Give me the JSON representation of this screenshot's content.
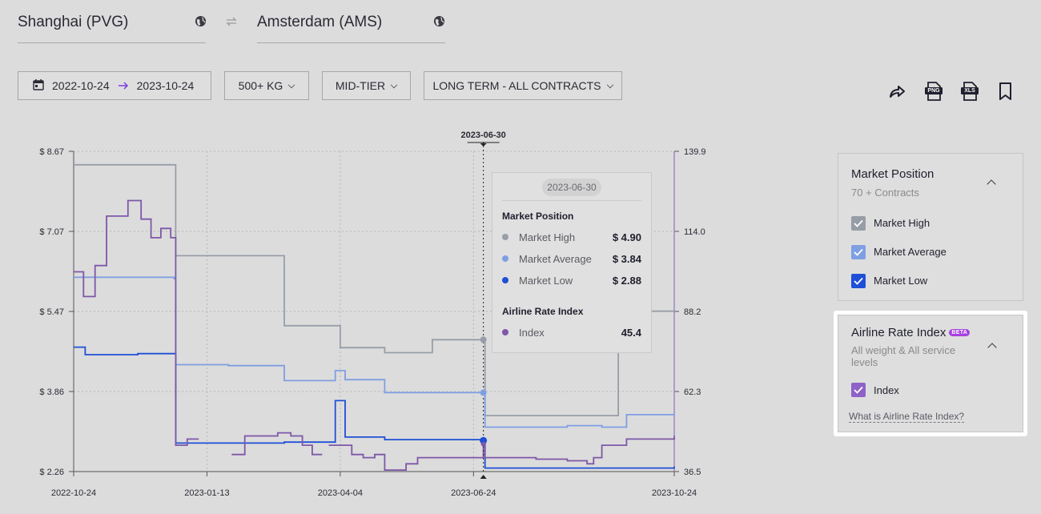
{
  "route": {
    "origin": "Shanghai (PVG)",
    "destination": "Amsterdam (AMS)",
    "origin_icon": "globe-icon",
    "destination_icon": "globe-icon",
    "swap_icon": "swap-arrows-icon"
  },
  "filters": {
    "date_from": "2022-10-24",
    "date_to": "2023-10-24",
    "weight": "500+ KG",
    "tier": "MID-TIER",
    "contract": "LONG TERM - ALL CONTRACTS"
  },
  "toolbar": {
    "share_icon": "share-icon",
    "png_label": "PNG",
    "xls_label": "XLS",
    "bookmark_icon": "bookmark-icon"
  },
  "chart_data": {
    "type": "line",
    "step": true,
    "title": "",
    "hover_date": "2023-06-30",
    "x_ticks": [
      "2022-10-24",
      "2023-01-13",
      "2023-04-04",
      "2023-06-24",
      "2023-10-24"
    ],
    "y_left_ticks": [
      "$ 2.26",
      "$ 3.86",
      "$ 5.47",
      "$ 7.07",
      "$ 8.67"
    ],
    "y_right_ticks": [
      "36.5",
      "62.3",
      "88.2",
      "114.0",
      "139.9"
    ],
    "y_left_range": [
      2.26,
      8.67
    ],
    "y_right_range": [
      36.5,
      139.9
    ],
    "grid": true,
    "colors": {
      "high": "#989ea8",
      "avg": "#7f9fe3",
      "low": "#1e4fd6",
      "index": "#7e57a8"
    },
    "series": [
      {
        "name": "Market High",
        "axis": "left",
        "color": "#989ea8",
        "points": [
          [
            "2022-10-24",
            8.4
          ],
          [
            "2022-12-24",
            8.4
          ],
          [
            "2022-12-25",
            6.58
          ],
          [
            "2023-02-28",
            6.58
          ],
          [
            "2023-03-01",
            5.18
          ],
          [
            "2023-04-04",
            4.74
          ],
          [
            "2023-05-01",
            4.64
          ],
          [
            "2023-05-30",
            4.9
          ],
          [
            "2023-06-30",
            4.9
          ],
          [
            "2023-07-01",
            3.38
          ],
          [
            "2023-09-19",
            3.38
          ],
          [
            "2023-09-20",
            5.47
          ],
          [
            "2023-10-24",
            5.47
          ]
        ]
      },
      {
        "name": "Market Average",
        "axis": "left",
        "color": "#7f9fe3",
        "points": [
          [
            "2022-10-24",
            6.15
          ],
          [
            "2022-12-24",
            6.12
          ],
          [
            "2022-12-25",
            4.4
          ],
          [
            "2023-01-26",
            4.38
          ],
          [
            "2023-03-01",
            4.08
          ],
          [
            "2023-04-01",
            4.28
          ],
          [
            "2023-04-07",
            4.1
          ],
          [
            "2023-05-01",
            3.84
          ],
          [
            "2023-06-30",
            3.84
          ],
          [
            "2023-07-01",
            3.15
          ],
          [
            "2023-08-20",
            3.18
          ],
          [
            "2023-09-10",
            3.15
          ],
          [
            "2023-09-25",
            3.4
          ],
          [
            "2023-10-24",
            3.42
          ]
        ]
      },
      {
        "name": "Market Low",
        "axis": "left",
        "color": "#1e4fd6",
        "points": [
          [
            "2022-10-24",
            4.75
          ],
          [
            "2022-10-31",
            4.6
          ],
          [
            "2022-12-02",
            4.62
          ],
          [
            "2022-12-24",
            4.62
          ],
          [
            "2022-12-25",
            2.83
          ],
          [
            "2023-01-13",
            2.83
          ],
          [
            "2023-03-01",
            2.85
          ],
          [
            "2023-03-31",
            2.85
          ],
          [
            "2023-04-01",
            3.68
          ],
          [
            "2023-04-07",
            2.95
          ],
          [
            "2023-05-01",
            2.9
          ],
          [
            "2023-06-30",
            2.88
          ],
          [
            "2023-07-01",
            2.33
          ],
          [
            "2023-10-24",
            2.36
          ]
        ]
      },
      {
        "name": "Index",
        "axis": "right",
        "color": "#7e57a8",
        "points": [
          [
            "2022-10-24",
            101
          ],
          [
            "2022-10-30",
            93
          ],
          [
            "2022-11-06",
            103
          ],
          [
            "2022-11-13",
            119
          ],
          [
            "2022-11-26",
            124
          ],
          [
            "2022-12-04",
            118
          ],
          [
            "2022-12-10",
            112
          ],
          [
            "2022-12-16",
            115
          ],
          [
            "2022-12-22",
            112
          ],
          [
            "2022-12-25",
            45
          ],
          [
            "2023-01-01",
            47
          ],
          [
            "2023-01-08",
            null
          ],
          [
            "2023-01-28",
            42
          ],
          [
            "2023-02-05",
            48
          ],
          [
            "2023-02-25",
            49
          ],
          [
            "2023-03-05",
            48
          ],
          [
            "2023-03-12",
            45
          ],
          [
            "2023-03-18",
            42
          ],
          [
            "2023-03-24",
            null
          ],
          [
            "2023-03-28",
            45
          ],
          [
            "2023-04-06",
            45
          ],
          [
            "2023-04-11",
            42
          ],
          [
            "2023-04-18",
            41
          ],
          [
            "2023-04-25",
            42
          ],
          [
            "2023-05-01",
            37
          ],
          [
            "2023-05-14",
            39
          ],
          [
            "2023-05-21",
            41
          ],
          [
            "2023-06-03",
            41
          ],
          [
            "2023-06-17",
            41
          ],
          [
            "2023-06-30",
            45.4
          ],
          [
            "2023-07-01",
            41
          ],
          [
            "2023-07-15",
            41
          ],
          [
            "2023-08-01",
            40.5
          ],
          [
            "2023-08-20",
            40
          ],
          [
            "2023-09-01",
            39
          ],
          [
            "2023-09-05",
            41
          ],
          [
            "2023-09-10",
            45
          ],
          [
            "2023-09-25",
            47
          ],
          [
            "2023-10-10",
            47
          ],
          [
            "2023-10-24",
            48
          ]
        ]
      }
    ]
  },
  "tooltip": {
    "date": "2023-06-30",
    "market_title": "Market Position",
    "rows": [
      {
        "label": "Market High",
        "value": "$ 4.90",
        "color": "#989ea8"
      },
      {
        "label": "Market Average",
        "value": "$ 3.84",
        "color": "#7f9fe3"
      },
      {
        "label": "Market Low",
        "value": "$ 2.88",
        "color": "#1e4fd6"
      }
    ],
    "index_title": "Airline Rate Index",
    "index_row": {
      "label": "Index",
      "value": "45.4",
      "color": "#7e57a8"
    }
  },
  "market_panel": {
    "title": "Market Position",
    "subtitle": "70 + Contracts",
    "items": [
      {
        "label": "Market High",
        "color": "#979da7"
      },
      {
        "label": "Market Average",
        "color": "#7f9fe3"
      },
      {
        "label": "Market Low",
        "color": "#1e4fd6"
      }
    ]
  },
  "index_panel": {
    "title": "Airline Rate Index",
    "badge": "BETA",
    "subtitle": "All weight & All service levels",
    "item": {
      "label": "Index",
      "color": "#8e62c8"
    },
    "link": "What is Airline Rate Index?"
  }
}
